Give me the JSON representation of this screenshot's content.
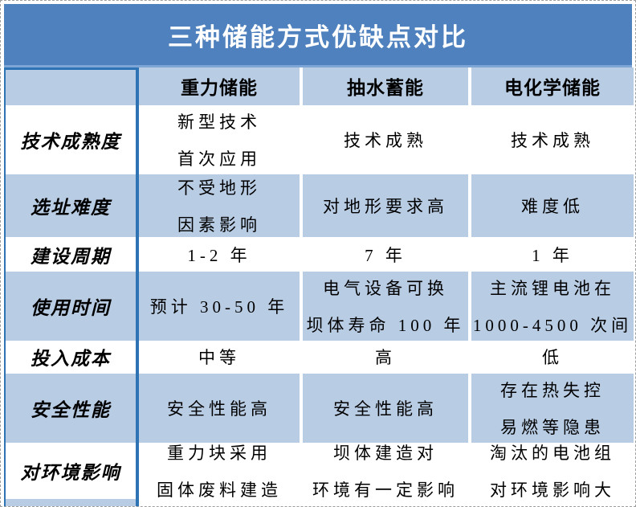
{
  "title": "三种储能方式优缺点对比",
  "colors": {
    "title_bg": "#4E81BD",
    "row_highlight": "#B8CCE4",
    "divider": "#2E74B5"
  },
  "table": {
    "column_headers": [
      "重力储能",
      "抽水蓄能",
      "电化学储能"
    ],
    "rows": [
      {
        "label": "技术成熟度",
        "cells": [
          [
            "新型技术",
            "首次应用"
          ],
          [
            "技术成熟"
          ],
          [
            "技术成熟"
          ]
        ]
      },
      {
        "label": "选址难度",
        "cells": [
          [
            "不受地形",
            "因素影响"
          ],
          [
            "对地形要求高"
          ],
          [
            "难度低"
          ]
        ]
      },
      {
        "label": "建设周期",
        "cells": [
          [
            "1-2 年"
          ],
          [
            "7 年"
          ],
          [
            "1 年"
          ]
        ]
      },
      {
        "label": "使用时间",
        "cells": [
          [
            "预计 30-50 年"
          ],
          [
            "电气设备可换",
            "坝体寿命 100 年"
          ],
          [
            "主流锂电池在",
            "1000-4500 次间"
          ]
        ]
      },
      {
        "label": "投入成本",
        "cells": [
          [
            "中等"
          ],
          [
            "高"
          ],
          [
            "低"
          ]
        ]
      },
      {
        "label": "安全性能",
        "cells": [
          [
            "安全性能高"
          ],
          [
            "安全性能高"
          ],
          [
            "存在热失控",
            "易燃等隐患"
          ]
        ]
      },
      {
        "label": "对环境影响",
        "cells": [
          [
            "重力块采用",
            "固体废料建造"
          ],
          [
            "坝体建造对",
            "环境有一定影响"
          ],
          [
            "淘汰的电池组",
            "对环境影响大"
          ]
        ]
      }
    ]
  },
  "chart_data": {
    "type": "table",
    "title": "三种储能方式优缺点对比",
    "columns": [
      "",
      "重力储能",
      "抽水蓄能",
      "电化学储能"
    ],
    "rows": [
      [
        "技术成熟度",
        "新型技术 首次应用",
        "技术成熟",
        "技术成熟"
      ],
      [
        "选址难度",
        "不受地形 因素影响",
        "对地形要求高",
        "难度低"
      ],
      [
        "建设周期",
        "1-2 年",
        "7 年",
        "1 年"
      ],
      [
        "使用时间",
        "预计 30-50 年",
        "电气设备可换 坝体寿命 100 年",
        "主流锂电池在 1000-4500 次间"
      ],
      [
        "投入成本",
        "中等",
        "高",
        "低"
      ],
      [
        "安全性能",
        "安全性能高",
        "安全性能高",
        "存在热失控 易燃等隐患"
      ],
      [
        "对环境影响",
        "重力块采用 固体废料建造",
        "坝体建造对 环境有一定影响",
        "淘汰的电池组 对环境影响大"
      ]
    ]
  }
}
